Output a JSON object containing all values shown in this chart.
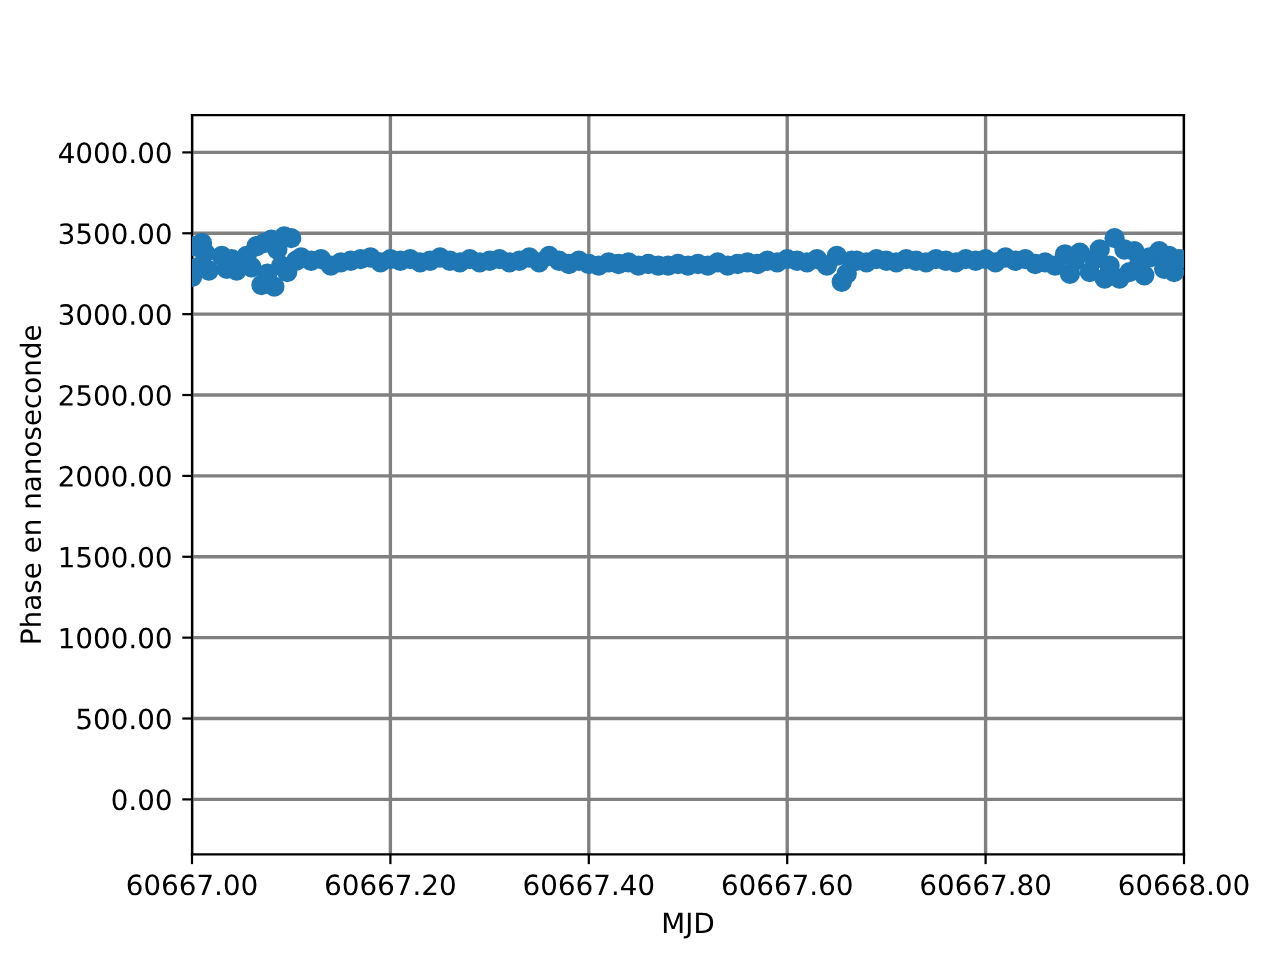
{
  "chart_data": {
    "type": "scatter",
    "xlabel": "MJD",
    "ylabel": "Phase en nanoseconde",
    "xlim": [
      60667.0,
      60668.0
    ],
    "ylim": [
      -340,
      4230
    ],
    "xticks": [
      {
        "value": 60667.0,
        "label": "60667.00"
      },
      {
        "value": 60667.2,
        "label": "60667.20"
      },
      {
        "value": 60667.4,
        "label": "60667.40"
      },
      {
        "value": 60667.6,
        "label": "60667.60"
      },
      {
        "value": 60667.8,
        "label": "60667.80"
      },
      {
        "value": 60668.0,
        "label": "60668.00"
      }
    ],
    "yticks": [
      {
        "value": 0,
        "label": "0.00"
      },
      {
        "value": 500,
        "label": "500.00"
      },
      {
        "value": 1000,
        "label": "1000.00"
      },
      {
        "value": 1500,
        "label": "1500.00"
      },
      {
        "value": 2000,
        "label": "2000.00"
      },
      {
        "value": 2500,
        "label": "2500.00"
      },
      {
        "value": 3000,
        "label": "3000.00"
      },
      {
        "value": 3500,
        "label": "3500.00"
      },
      {
        "value": 4000,
        "label": "4000.00"
      }
    ],
    "grid": true,
    "marker": "circle",
    "series": [
      {
        "color": "#1f77b4",
        "x": [
          60667.0,
          60667.003,
          60667.006,
          60667.01,
          60667.013,
          60667.017,
          60667.03,
          60667.035,
          60667.04,
          60667.045,
          60667.055,
          60667.06,
          60667.065,
          60667.07,
          60667.073,
          60667.076,
          60667.08,
          60667.083,
          60667.086,
          60667.09,
          60667.093,
          60667.096,
          60667.1,
          60667.105,
          60667.11,
          60667.12,
          60667.13,
          60667.14,
          60667.15,
          60667.16,
          60667.17,
          60667.18,
          60667.19,
          60667.2,
          60667.21,
          60667.22,
          60667.23,
          60667.24,
          60667.25,
          60667.26,
          60667.27,
          60667.28,
          60667.29,
          60667.3,
          60667.31,
          60667.32,
          60667.33,
          60667.34,
          60667.35,
          60667.36,
          60667.37,
          60667.38,
          60667.39,
          60667.4,
          60667.41,
          60667.42,
          60667.43,
          60667.44,
          60667.45,
          60667.46,
          60667.47,
          60667.48,
          60667.49,
          60667.5,
          60667.51,
          60667.52,
          60667.53,
          60667.54,
          60667.55,
          60667.56,
          60667.57,
          60667.58,
          60667.59,
          60667.6,
          60667.61,
          60667.62,
          60667.63,
          60667.64,
          60667.65,
          60667.655,
          60667.66,
          60667.665,
          60667.67,
          60667.68,
          60667.69,
          60667.7,
          60667.71,
          60667.72,
          60667.73,
          60667.74,
          60667.75,
          60667.76,
          60667.77,
          60667.78,
          60667.79,
          60667.8,
          60667.81,
          60667.82,
          60667.83,
          60667.84,
          60667.85,
          60667.86,
          60667.87,
          60667.88,
          60667.885,
          60667.89,
          60667.895,
          60667.905,
          60667.91,
          60667.915,
          60667.92,
          60667.925,
          60667.93,
          60667.935,
          60667.94,
          60667.945,
          60667.95,
          60667.955,
          60667.96,
          60667.965,
          60667.975,
          60667.98,
          60667.985,
          60667.99,
          60667.995
        ],
        "values": [
          3230,
          3420,
          3290,
          3440,
          3380,
          3270,
          3360,
          3280,
          3340,
          3270,
          3360,
          3290,
          3420,
          3180,
          3440,
          3250,
          3460,
          3170,
          3400,
          3300,
          3480,
          3260,
          3470,
          3330,
          3350,
          3330,
          3340,
          3300,
          3320,
          3330,
          3340,
          3350,
          3320,
          3340,
          3330,
          3340,
          3320,
          3330,
          3350,
          3330,
          3320,
          3340,
          3320,
          3330,
          3340,
          3320,
          3330,
          3350,
          3320,
          3360,
          3330,
          3310,
          3330,
          3310,
          3300,
          3320,
          3310,
          3320,
          3300,
          3310,
          3300,
          3300,
          3310,
          3300,
          3310,
          3300,
          3320,
          3300,
          3310,
          3320,
          3310,
          3330,
          3320,
          3340,
          3330,
          3320,
          3340,
          3300,
          3360,
          3200,
          3250,
          3330,
          3330,
          3320,
          3340,
          3330,
          3320,
          3340,
          3330,
          3320,
          3340,
          3330,
          3320,
          3340,
          3330,
          3340,
          3320,
          3350,
          3330,
          3340,
          3310,
          3320,
          3300,
          3370,
          3250,
          3330,
          3380,
          3260,
          3340,
          3400,
          3220,
          3300,
          3470,
          3220,
          3400,
          3260,
          3390,
          3310,
          3240,
          3350,
          3390,
          3280,
          3360,
          3260,
          3340
        ]
      }
    ]
  }
}
